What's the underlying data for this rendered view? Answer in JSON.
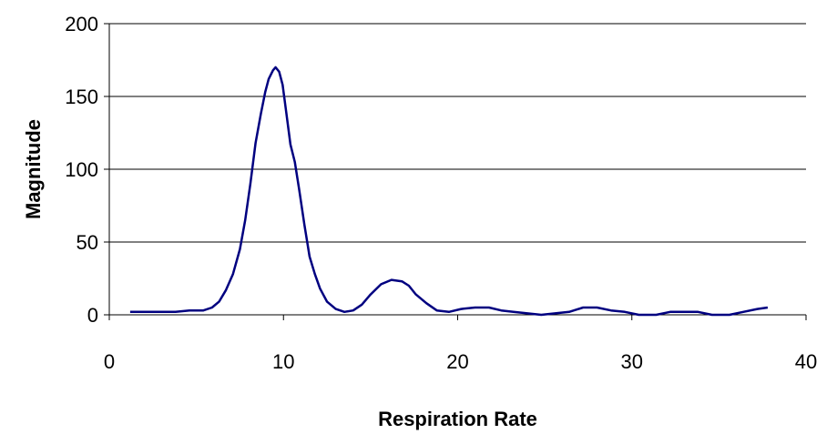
{
  "chart_data": {
    "type": "line",
    "title": "",
    "xlabel": "Respiration Rate",
    "ylabel": "Magnitude",
    "xlim": [
      0,
      40
    ],
    "ylim": [
      0,
      200
    ],
    "x_ticks": [
      0,
      10,
      20,
      30,
      40
    ],
    "y_ticks": [
      0,
      50,
      100,
      150,
      200
    ],
    "x_tick_labels": [
      "0",
      "10",
      "20",
      "30",
      "40"
    ],
    "y_tick_labels": [
      "0",
      "50",
      "100",
      "150",
      "200"
    ],
    "grid": "horizontal",
    "legend": "none",
    "series_color": "#000080",
    "series": [
      {
        "points": [
          [
            1.2,
            2
          ],
          [
            2.0,
            2
          ],
          [
            3.0,
            2
          ],
          [
            3.8,
            2
          ],
          [
            4.6,
            3
          ],
          [
            5.4,
            3
          ],
          [
            5.9,
            5
          ],
          [
            6.3,
            9
          ],
          [
            6.7,
            17
          ],
          [
            7.1,
            28
          ],
          [
            7.5,
            45
          ],
          [
            7.8,
            65
          ],
          [
            8.1,
            90
          ],
          [
            8.4,
            118
          ],
          [
            8.7,
            138
          ],
          [
            8.95,
            153
          ],
          [
            9.15,
            162
          ],
          [
            9.4,
            168
          ],
          [
            9.55,
            170
          ],
          [
            9.75,
            167
          ],
          [
            9.95,
            158
          ],
          [
            10.15,
            140
          ],
          [
            10.4,
            117
          ],
          [
            10.65,
            105
          ],
          [
            10.9,
            86
          ],
          [
            11.2,
            62
          ],
          [
            11.5,
            40
          ],
          [
            11.8,
            28
          ],
          [
            12.1,
            18
          ],
          [
            12.5,
            9
          ],
          [
            13.0,
            4
          ],
          [
            13.5,
            2
          ],
          [
            14.0,
            3
          ],
          [
            14.5,
            7
          ],
          [
            15.0,
            14
          ],
          [
            15.6,
            21
          ],
          [
            16.2,
            24
          ],
          [
            16.8,
            23
          ],
          [
            17.2,
            20
          ],
          [
            17.6,
            14
          ],
          [
            18.2,
            8
          ],
          [
            18.8,
            3
          ],
          [
            19.5,
            2
          ],
          [
            20.2,
            4
          ],
          [
            21.0,
            5
          ],
          [
            21.8,
            5
          ],
          [
            22.5,
            3
          ],
          [
            23.2,
            2
          ],
          [
            24.0,
            1
          ],
          [
            24.8,
            0
          ],
          [
            25.6,
            1
          ],
          [
            26.4,
            2
          ],
          [
            27.2,
            5
          ],
          [
            28.0,
            5
          ],
          [
            28.8,
            3
          ],
          [
            29.6,
            2
          ],
          [
            30.4,
            0
          ],
          [
            31.4,
            0
          ],
          [
            32.2,
            2
          ],
          [
            33.0,
            2
          ],
          [
            33.8,
            2
          ],
          [
            34.6,
            0
          ],
          [
            35.6,
            0
          ],
          [
            36.4,
            2
          ],
          [
            37.2,
            4
          ],
          [
            37.8,
            5
          ]
        ]
      }
    ]
  }
}
